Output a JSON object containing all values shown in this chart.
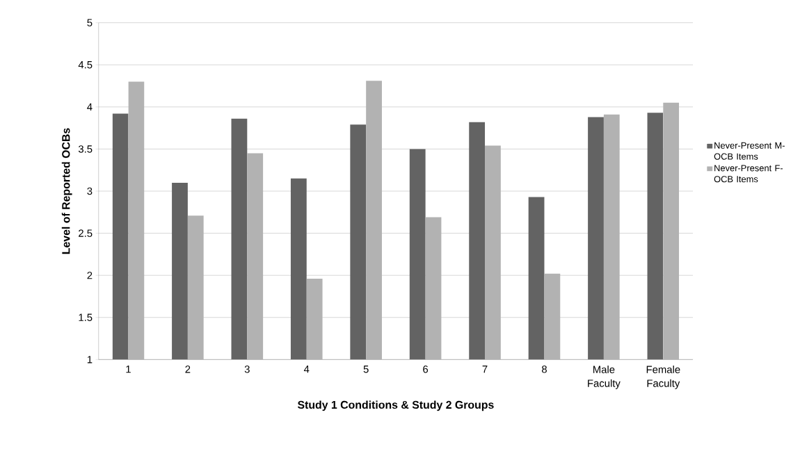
{
  "chart_data": {
    "type": "bar",
    "xlabel": "Study 1 Conditions & Study 2 Groups",
    "ylabel": "Level of Reported OCBs",
    "categories": [
      "1",
      "2",
      "3",
      "4",
      "5",
      "6",
      "7",
      "8",
      "Male Faculty",
      "Female Faculty"
    ],
    "series": [
      {
        "name": "Never-Present M-OCB Items",
        "color": "#636363",
        "values": [
          3.92,
          3.1,
          3.86,
          3.15,
          3.79,
          3.5,
          3.82,
          2.93,
          3.88,
          3.93
        ]
      },
      {
        "name": "Never-Present F-OCB Items",
        "color": "#b2b2b2",
        "values": [
          4.3,
          2.71,
          3.45,
          1.96,
          4.31,
          2.69,
          3.54,
          2.02,
          3.91,
          4.05
        ]
      }
    ],
    "ylim": [
      1,
      5
    ],
    "yticks": [
      1,
      1.5,
      2,
      2.5,
      3,
      3.5,
      4,
      4.5,
      5
    ],
    "grid": "y",
    "legend": "right"
  }
}
